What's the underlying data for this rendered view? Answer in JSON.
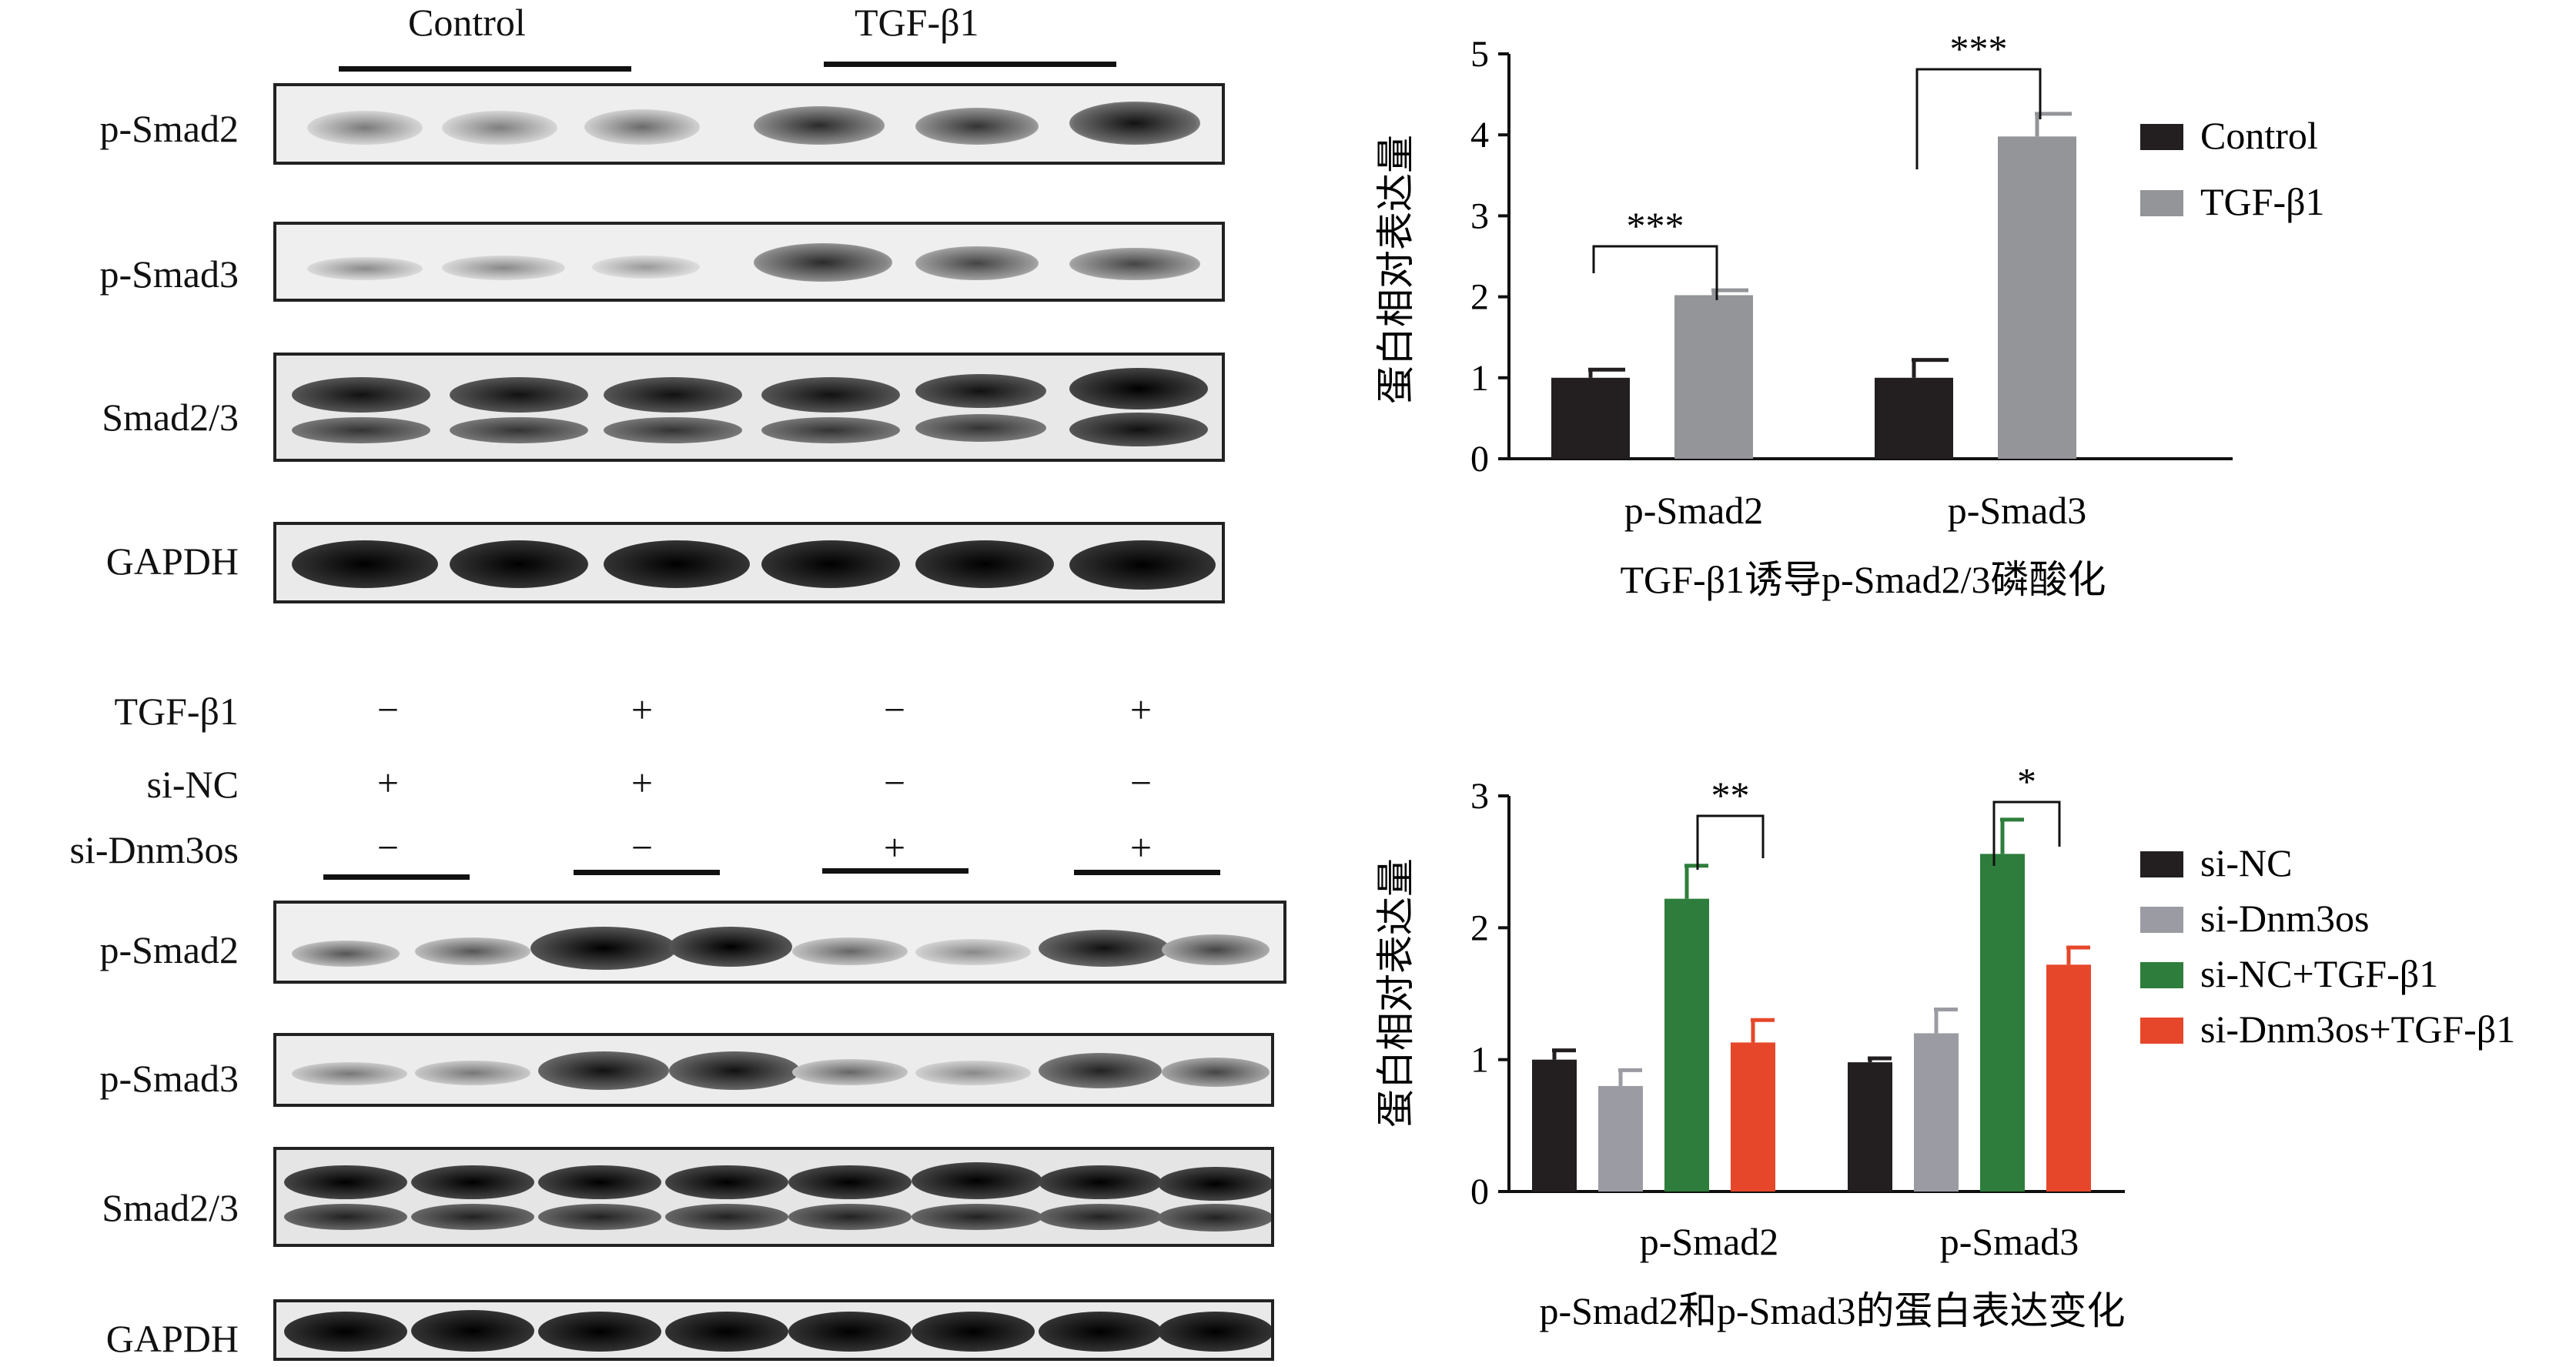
{
  "top_blot": {
    "groups": [
      "Control",
      "TGF-β1"
    ],
    "rows": [
      "p-Smad2",
      "p-Smad3",
      "Smad2/3",
      "GAPDH"
    ]
  },
  "bottom_blot": {
    "conditions": [
      {
        "name": "TGF-β1",
        "signs": [
          "−",
          "+",
          "−",
          "+"
        ]
      },
      {
        "name": "si-NC",
        "signs": [
          "+",
          "+",
          "−",
          "−"
        ]
      },
      {
        "name": "si-Dnm3os",
        "signs": [
          "−",
          "−",
          "+",
          "+"
        ]
      }
    ],
    "rows": [
      "p-Smad2",
      "p-Smad3",
      "Smad2/3",
      "GAPDH"
    ]
  },
  "chart_data": [
    {
      "type": "bar",
      "title": "TGF-β1诱导p-Smad2/3磷酸化",
      "ylabel": "蛋白相对表达量",
      "xlabel": "",
      "ylim": [
        0,
        5
      ],
      "yticks": [
        "0",
        "1",
        "2",
        "3",
        "4",
        "5"
      ],
      "categories": [
        "p-Smad2",
        "p-Smad3"
      ],
      "series": [
        {
          "name": "Control",
          "color": "#231f20",
          "values": [
            1.0,
            1.0
          ],
          "errors": [
            0.1,
            0.22
          ]
        },
        {
          "name": "TGF-β1",
          "color": "#939598",
          "values": [
            2.02,
            3.98
          ],
          "errors": [
            0.06,
            0.28
          ]
        }
      ],
      "significance": [
        {
          "category": "p-Smad2",
          "label": "***"
        },
        {
          "category": "p-Smad3",
          "label": "***"
        }
      ],
      "legend": "right"
    },
    {
      "type": "bar",
      "title": "p-Smad2和p-Smad3的蛋白表达变化",
      "ylabel": "蛋白相对表达量",
      "xlabel": "",
      "ylim": [
        0,
        3
      ],
      "yticks": [
        "0",
        "1",
        "2",
        "3"
      ],
      "categories": [
        "p-Smad2",
        "p-Smad3"
      ],
      "series": [
        {
          "name": "si-NC",
          "color": "#231f20",
          "values": [
            1.0,
            0.98
          ],
          "errors": [
            0.07,
            0.03
          ]
        },
        {
          "name": "si-Dnm3os",
          "color": "#9b9ba3",
          "values": [
            0.8,
            1.2
          ],
          "errors": [
            0.12,
            0.18
          ]
        },
        {
          "name": "si-NC+TGF-β1",
          "color": "#2e7d3c",
          "values": [
            2.22,
            2.56
          ],
          "errors": [
            0.25,
            0.26
          ]
        },
        {
          "name": "si-Dnm3os+TGF-β1",
          "color": "#e6472a",
          "values": [
            1.13,
            1.72
          ],
          "errors": [
            0.17,
            0.13
          ]
        }
      ],
      "significance": [
        {
          "category": "p-Smad2",
          "label": "**"
        },
        {
          "category": "p-Smad3",
          "label": "*"
        }
      ],
      "legend": "right"
    }
  ]
}
